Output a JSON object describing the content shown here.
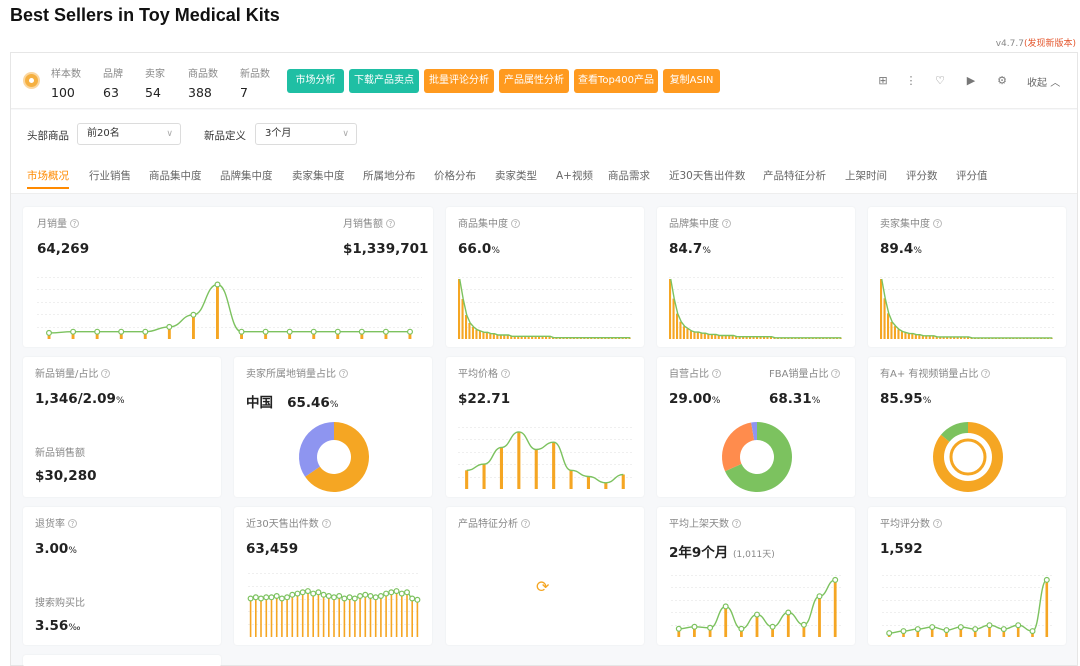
{
  "page_title": "Best Sellers in Toy Medical Kits",
  "version": {
    "number": "v4.7.7",
    "update_link": "(发现新版本)"
  },
  "stats": [
    {
      "label": "样本数",
      "value": "100"
    },
    {
      "label": "品牌",
      "value": "63"
    },
    {
      "label": "卖家",
      "value": "54"
    },
    {
      "label": "商品数",
      "value": "388"
    },
    {
      "label": "新品数",
      "value": "7"
    }
  ],
  "buttons": [
    {
      "label": "市场分析",
      "color": "#1fbfa4"
    },
    {
      "label": "下载产品卖点",
      "color": "#1fbfa4"
    },
    {
      "label": "批量评论分析",
      "color": "#ff9a1f"
    },
    {
      "label": "产品属性分析",
      "color": "#ff9a1f"
    },
    {
      "label": "查看Top400产品",
      "color": "#ff9a1f"
    },
    {
      "label": "复制ASIN",
      "color": "#ff9a1f"
    }
  ],
  "toolbar": {
    "collapse_label": "收起"
  },
  "filters": {
    "head_label": "头部商品",
    "head_value": "前20名",
    "new_label": "新品定义",
    "new_value": "3个月"
  },
  "tabs": [
    "市场概况",
    "行业销售",
    "商品集中度",
    "品牌集中度",
    "卖家集中度",
    "所属地分布",
    "价格分布",
    "卖家类型",
    "A+视频",
    "商品需求",
    "近30天售出件数",
    "产品特征分析",
    "上架时间",
    "评分数",
    "评分值"
  ],
  "cards": {
    "monthly_sales": {
      "label": "月销量",
      "value": "64,269"
    },
    "monthly_revenue": {
      "label": "月销售额",
      "value": "$1,339,701"
    },
    "product_conc": {
      "label": "商品集中度",
      "value": "66.0",
      "unit": "%"
    },
    "brand_conc": {
      "label": "品牌集中度",
      "value": "84.7",
      "unit": "%"
    },
    "seller_conc": {
      "label": "卖家集中度",
      "value": "89.4",
      "unit": "%"
    },
    "new_sales": {
      "label": "新品销量/占比",
      "value": "1,346/2.09",
      "unit": "%",
      "label2": "新品销售额",
      "value2": "$30,280"
    },
    "seller_origin": {
      "label": "卖家所属地销量占比",
      "country": "中国",
      "value": "65.46",
      "unit": "%"
    },
    "avg_price": {
      "label": "平均价格",
      "value": "$22.71"
    },
    "self_op": {
      "label": "自营占比",
      "value": "29.00",
      "unit": "%",
      "label2": "FBA销量占比",
      "value2": "68.31"
    },
    "aplus": {
      "label": "有A+ 有视频销量占比",
      "value": "85.95",
      "unit": "%"
    },
    "return_rate": {
      "label": "退货率",
      "value": "3.00",
      "unit": "%",
      "label2": "搜索购买比",
      "value2": "3.56",
      "unit2": "‰"
    },
    "sold30": {
      "label": "近30天售出件数",
      "value": "63,459"
    },
    "features": {
      "label": "产品特征分析"
    },
    "avg_days": {
      "label": "平均上架天数",
      "value": "2年9个月",
      "note": "(1,011天)"
    },
    "avg_reviews": {
      "label": "平均评分数",
      "value": "1,592"
    }
  },
  "colors": {
    "orange": "#f5a623",
    "green": "#7cc25f",
    "accent": "#ff8a00",
    "purple": "#8e95f0"
  },
  "chart_data": [
    {
      "type": "bar",
      "name": "monthly_sales_trend",
      "values": [
        5,
        6,
        6,
        6,
        6,
        10,
        20,
        45,
        6,
        6,
        6,
        6,
        6,
        6,
        6,
        6
      ]
    },
    {
      "type": "bar",
      "name": "product_concentration",
      "values": [
        45,
        30,
        18,
        12,
        9,
        7,
        6,
        5,
        5,
        4,
        4,
        3,
        3,
        3,
        3,
        2,
        2,
        2,
        2,
        2,
        2,
        2,
        2,
        2,
        2,
        2,
        2,
        1,
        1,
        1,
        1,
        1,
        1,
        1,
        1,
        1,
        1,
        1,
        1,
        1,
        1,
        1,
        1,
        1,
        1,
        1,
        1,
        1,
        1,
        1
      ]
    },
    {
      "type": "bar",
      "name": "brand_concentration",
      "values": [
        52,
        35,
        22,
        15,
        11,
        9,
        7,
        6,
        6,
        5,
        5,
        4,
        4,
        4,
        3,
        3,
        3,
        3,
        3,
        2,
        2,
        2,
        2,
        2,
        2,
        2,
        2,
        2,
        2,
        2,
        1,
        1,
        1,
        1,
        1,
        1,
        1,
        1,
        1,
        1,
        1,
        1,
        1,
        1,
        1,
        1,
        1,
        1,
        1,
        1
      ]
    },
    {
      "type": "bar",
      "name": "seller_concentration",
      "values": [
        56,
        38,
        24,
        16,
        12,
        9,
        7,
        6,
        5,
        5,
        4,
        4,
        3,
        3,
        3,
        3,
        2,
        2,
        2,
        2,
        2,
        2,
        2,
        2,
        2,
        2,
        1,
        1,
        1,
        1,
        1,
        1,
        1,
        1,
        1,
        1,
        1,
        1,
        1,
        1,
        1,
        1,
        1,
        1,
        1,
        1,
        1,
        1,
        1,
        1
      ]
    },
    {
      "type": "pie",
      "name": "seller_origin",
      "values": [
        65.46,
        34.54
      ],
      "colors": [
        "#f5a623",
        "#8e95f0"
      ]
    },
    {
      "type": "bar",
      "name": "price_distribution",
      "values": [
        18,
        24,
        40,
        55,
        38,
        45,
        18,
        12,
        6,
        14
      ]
    },
    {
      "type": "pie",
      "name": "self_operated",
      "values": [
        68.31,
        29.0,
        2.69
      ],
      "colors": [
        "#7cc25f",
        "#ff8c4d",
        "#8e95f0"
      ]
    },
    {
      "type": "pie",
      "name": "aplus_video",
      "values": [
        85.95,
        14.05
      ],
      "colors": [
        "#f5a623",
        "#7cc25f"
      ]
    },
    {
      "type": "bar",
      "name": "sold_last_30_days",
      "values": [
        62,
        64,
        62,
        64,
        64,
        66,
        62,
        64,
        68,
        70,
        72,
        74,
        70,
        72,
        68,
        66,
        64,
        66,
        62,
        64,
        62,
        66,
        68,
        66,
        64,
        66,
        70,
        72,
        74,
        70,
        72,
        62,
        60
      ]
    },
    {
      "type": "bar",
      "name": "avg_listing_days",
      "values": [
        8,
        10,
        9,
        30,
        8,
        22,
        10,
        24,
        12,
        40,
        56
      ]
    },
    {
      "type": "bar",
      "name": "avg_review_count",
      "values": [
        4,
        6,
        8,
        10,
        7,
        10,
        8,
        12,
        8,
        12,
        6,
        58
      ]
    }
  ]
}
